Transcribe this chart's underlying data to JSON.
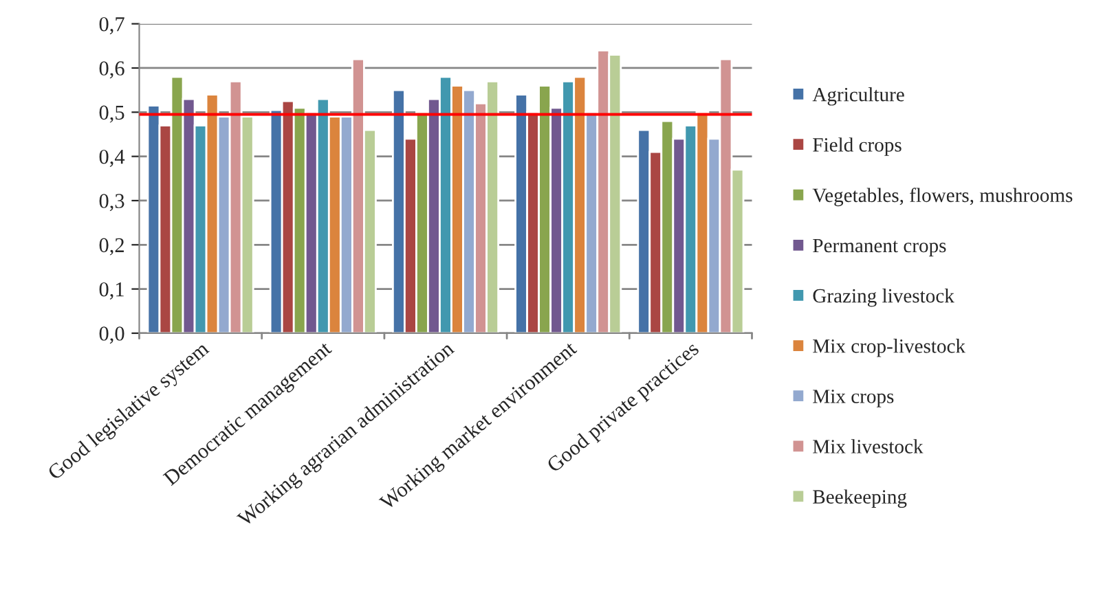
{
  "chart_data": {
    "type": "bar",
    "categories": [
      "Good legislative system",
      "Democratic management",
      "Working agrarian administration",
      "Working market environment",
      "Good private practices"
    ],
    "series": [
      {
        "name": "Agriculture",
        "color": "#4572a7",
        "values": [
          0.515,
          0.505,
          0.55,
          0.54,
          0.46
        ]
      },
      {
        "name": "Field crops",
        "color": "#aa4643",
        "values": [
          0.47,
          0.525,
          0.44,
          0.5,
          0.41
        ]
      },
      {
        "name": "Vegetables, flowers, mushrooms",
        "color": "#89a54e",
        "values": [
          0.58,
          0.51,
          0.5,
          0.56,
          0.48
        ]
      },
      {
        "name": "Permanent crops",
        "color": "#71588f",
        "values": [
          0.53,
          0.5,
          0.53,
          0.51,
          0.44
        ]
      },
      {
        "name": "Grazing livestock",
        "color": "#4198af",
        "values": [
          0.47,
          0.53,
          0.58,
          0.57,
          0.47
        ]
      },
      {
        "name": "Mix crop-livestock",
        "color": "#db843d",
        "values": [
          0.54,
          0.49,
          0.56,
          0.58,
          0.5
        ]
      },
      {
        "name": "Mix crops",
        "color": "#93a9cf",
        "values": [
          0.49,
          0.49,
          0.55,
          0.5,
          0.44
        ]
      },
      {
        "name": "Mix livestock",
        "color": "#d19392",
        "values": [
          0.57,
          0.62,
          0.52,
          0.64,
          0.62
        ]
      },
      {
        "name": "Beekeeping",
        "color": "#b9cd96",
        "values": [
          0.49,
          0.46,
          0.57,
          0.63,
          0.37
        ]
      }
    ],
    "ylim": [
      0,
      0.7
    ],
    "yticks": [
      {
        "value": 0,
        "label": "0,0"
      },
      {
        "value": 0.1,
        "label": "0,1"
      },
      {
        "value": 0.2,
        "label": "0,2"
      },
      {
        "value": 0.3,
        "label": "0,3"
      },
      {
        "value": 0.4,
        "label": "0,4"
      },
      {
        "value": 0.5,
        "label": "0,5"
      },
      {
        "value": 0.6,
        "label": "0,6"
      },
      {
        "value": 0.7,
        "label": "0,7"
      }
    ],
    "ref_lines": [
      {
        "axis": "y",
        "value": 0.495,
        "color": "#ff0000"
      }
    ],
    "grid": "y",
    "legend": "right"
  }
}
